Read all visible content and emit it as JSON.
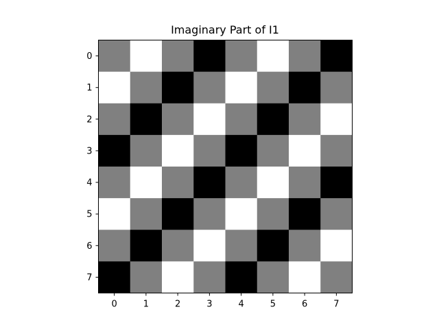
{
  "chart_data": {
    "type": "heatmap",
    "title": "Imaginary Part of I1",
    "xlabel": "",
    "ylabel": "",
    "x_ticks": [
      "0",
      "1",
      "2",
      "3",
      "4",
      "5",
      "6",
      "7"
    ],
    "y_ticks": [
      "0",
      "1",
      "2",
      "3",
      "4",
      "5",
      "6",
      "7"
    ],
    "colormap": "gray",
    "value_range": [
      -1,
      1
    ],
    "grid": false,
    "values": [
      [
        0,
        1,
        0,
        -1,
        0,
        1,
        0,
        -1
      ],
      [
        1,
        0,
        -1,
        0,
        1,
        0,
        -1,
        0
      ],
      [
        0,
        -1,
        0,
        1,
        0,
        -1,
        0,
        1
      ],
      [
        -1,
        0,
        1,
        0,
        -1,
        0,
        1,
        0
      ],
      [
        0,
        1,
        0,
        -1,
        0,
        1,
        0,
        -1
      ],
      [
        1,
        0,
        -1,
        0,
        1,
        0,
        -1,
        0
      ],
      [
        0,
        -1,
        0,
        1,
        0,
        -1,
        0,
        1
      ],
      [
        -1,
        0,
        1,
        0,
        -1,
        0,
        1,
        0
      ]
    ]
  }
}
